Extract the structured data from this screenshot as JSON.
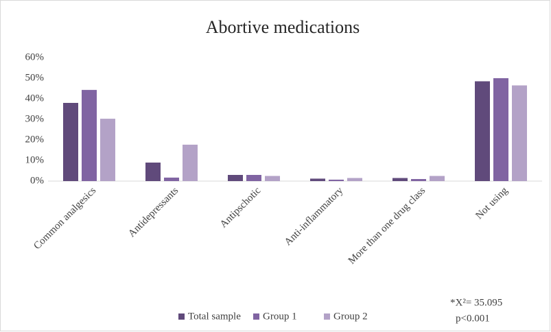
{
  "chart_data": {
    "type": "bar",
    "title": "Abortive medications",
    "categories": [
      "Common analgesics",
      "Antidepressants",
      "Antipschotic",
      "Anti-inflammatory",
      "More than one drug class",
      "Not using"
    ],
    "series": [
      {
        "name": "Total sample",
        "color": "#604a7b",
        "values": [
          38,
          9,
          3,
          1.2,
          1.5,
          48.5
        ]
      },
      {
        "name": "Group 1",
        "color": "#8064a2",
        "values": [
          44.3,
          1.7,
          3,
          0.7,
          1,
          50
        ]
      },
      {
        "name": "Group 2",
        "color": "#b3a2c7",
        "values": [
          30.3,
          17.7,
          2.5,
          1.5,
          2.5,
          46.5
        ]
      }
    ],
    "ylim": [
      0,
      60
    ],
    "yticks": [
      {
        "value": 0,
        "label": "0%"
      },
      {
        "value": 10,
        "label": "10%"
      },
      {
        "value": 20,
        "label": "20%"
      },
      {
        "value": 30,
        "label": "30%"
      },
      {
        "value": 40,
        "label": "40%"
      },
      {
        "value": 50,
        "label": "50%"
      },
      {
        "value": 60,
        "label": "60%"
      }
    ],
    "grid": false,
    "legend": "bottom",
    "annotations": [
      "*X²= 35.095",
      "p<0.001"
    ]
  }
}
